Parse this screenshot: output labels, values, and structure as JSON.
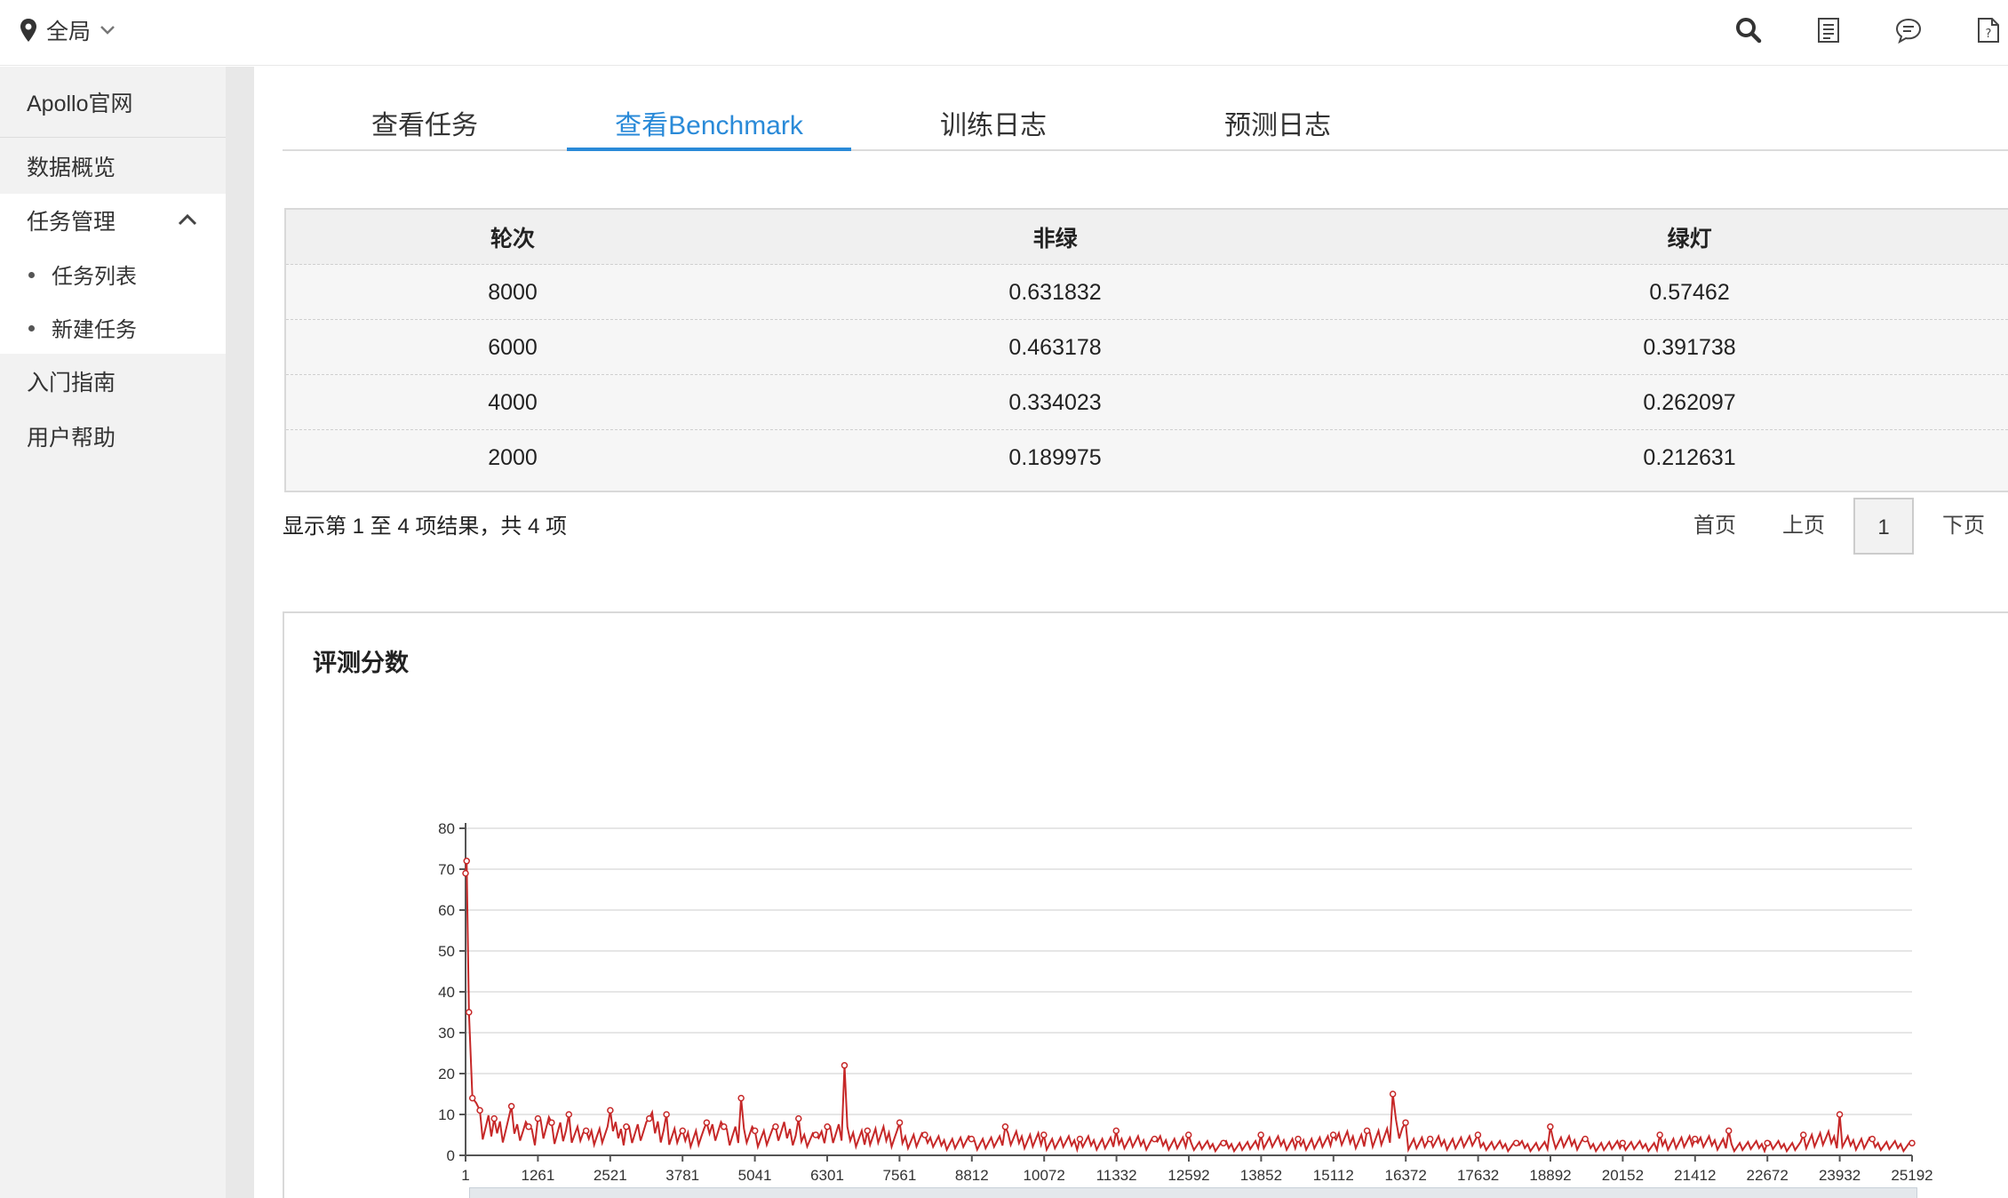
{
  "header": {
    "scope_label": "全局",
    "icons": [
      "search-icon",
      "document-list-icon",
      "chat-bubble-icon",
      "help-doc-icon"
    ]
  },
  "sidebar": {
    "site_link": "Apollo官网",
    "overview": "数据概览",
    "task_management": "任务管理",
    "task_list": "任务列表",
    "new_task": "新建任务",
    "guide": "入门指南",
    "help": "用户帮助"
  },
  "tabs": [
    {
      "label": "查看任务",
      "active": false
    },
    {
      "label": "查看Benchmark",
      "active": true
    },
    {
      "label": "训练日志",
      "active": false
    },
    {
      "label": "预测日志",
      "active": false
    }
  ],
  "table": {
    "columns": [
      "轮次",
      "非绿",
      "绿灯"
    ],
    "rows": [
      [
        "8000",
        "0.631832",
        "0.57462"
      ],
      [
        "6000",
        "0.463178",
        "0.391738"
      ],
      [
        "4000",
        "0.334023",
        "0.262097"
      ],
      [
        "2000",
        "0.189975",
        "0.212631"
      ]
    ],
    "summary": "显示第 1 至 4 项结果，共 4 项"
  },
  "pagination": {
    "first": "首页",
    "prev": "上页",
    "current": "1",
    "next": "下页"
  },
  "chart_panel": {
    "title": "评测分数"
  },
  "chart_data": {
    "type": "line",
    "title": "",
    "xlabel": "",
    "ylabel": "",
    "x_ticks": [
      "1",
      "1261",
      "2521",
      "3781",
      "5041",
      "6301",
      "7561",
      "8812",
      "10072",
      "11332",
      "12592",
      "13852",
      "15112",
      "16372",
      "17632",
      "18892",
      "20152",
      "21412",
      "22672",
      "23932",
      "25192"
    ],
    "y_ticks": [
      0,
      10,
      20,
      30,
      40,
      50,
      60,
      70,
      80
    ],
    "ylim": [
      0,
      80
    ],
    "xlim": [
      1,
      25192
    ],
    "grid": true,
    "series": [
      {
        "color": "#c62828",
        "x": [
          1,
          20,
          60,
          120,
          250,
          500,
          800,
          1100,
          1261,
          1500,
          1800,
          2100,
          2521,
          2800,
          3200,
          3500,
          3781,
          4200,
          4500,
          4800,
          5041,
          5400,
          5800,
          6100,
          6301,
          6600,
          7000,
          7561,
          8000,
          8812,
          9400,
          10072,
          10700,
          11332,
          12000,
          12592,
          13200,
          13852,
          14500,
          15112,
          15700,
          16150,
          16372,
          16800,
          17632,
          18300,
          18892,
          19500,
          20152,
          20800,
          21412,
          22000,
          22672,
          23300,
          23932,
          24500,
          25192
        ],
        "y": [
          69,
          72,
          35,
          14,
          11,
          9,
          12,
          7,
          9,
          8,
          10,
          6,
          11,
          7,
          9,
          10,
          6,
          8,
          7,
          14,
          6,
          7,
          9,
          5,
          7,
          22,
          6,
          8,
          5,
          4,
          7,
          5,
          4,
          6,
          4,
          5,
          3,
          5,
          4,
          5,
          6,
          15,
          8,
          4,
          5,
          3,
          7,
          4,
          3,
          5,
          4,
          6,
          3,
          5,
          10,
          4,
          3
        ]
      }
    ]
  }
}
